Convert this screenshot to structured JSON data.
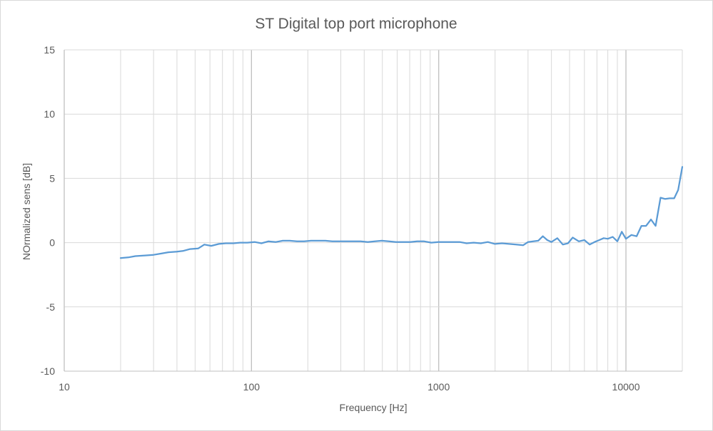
{
  "chart_data": {
    "type": "line",
    "title": "ST Digital top port microphone",
    "xlabel": "Frequency [Hz]",
    "ylabel": "NOrmalized sens [dB]",
    "x_scale": "log",
    "xlim": [
      10,
      20000
    ],
    "ylim": [
      -10,
      15
    ],
    "x_ticks": [
      10,
      100,
      1000,
      10000
    ],
    "x_tick_labels": [
      "10",
      "100",
      "1000",
      "10000"
    ],
    "y_ticks": [
      -10,
      -5,
      0,
      5,
      10,
      15
    ],
    "y_tick_labels": [
      "-10",
      "-5",
      "0",
      "5",
      "10",
      "15"
    ],
    "grid": true,
    "legend": "none",
    "line_color": "#5b9bd5",
    "grid_color": "#d9d9d9",
    "series": [
      {
        "x": [
          20,
          22,
          24,
          27,
          30,
          33,
          36,
          40,
          43,
          47,
          52,
          56,
          61,
          67,
          73,
          80,
          87,
          95,
          104,
          113,
          123,
          135,
          147,
          160,
          175,
          191,
          208,
          227,
          248,
          270,
          295,
          322,
          351,
          383,
          418,
          456,
          497,
          542,
          591,
          645,
          703,
          767,
          837,
          913,
          996,
          1086,
          1185,
          1293,
          1410,
          1538,
          1678,
          1830,
          1996,
          2178,
          2375,
          2591,
          2827,
          3000,
          3200,
          3400,
          3600,
          3800,
          4000,
          4300,
          4600,
          4900,
          5200,
          5600,
          6000,
          6400,
          6800,
          7200,
          7600,
          8000,
          8500,
          9000,
          9500,
          10000,
          10700,
          11400,
          12100,
          12800,
          13600,
          14400,
          15300,
          16200,
          17100,
          18100,
          19000,
          20000
        ],
        "y": [
          -1.2,
          -1.15,
          -1.05,
          -1.0,
          -0.95,
          -0.85,
          -0.75,
          -0.7,
          -0.65,
          -0.5,
          -0.45,
          -0.15,
          -0.25,
          -0.1,
          -0.05,
          -0.05,
          0.0,
          0.0,
          0.05,
          -0.05,
          0.1,
          0.05,
          0.15,
          0.15,
          0.1,
          0.1,
          0.15,
          0.15,
          0.15,
          0.1,
          0.1,
          0.1,
          0.1,
          0.1,
          0.05,
          0.1,
          0.15,
          0.1,
          0.05,
          0.05,
          0.05,
          0.1,
          0.1,
          0.0,
          0.05,
          0.05,
          0.05,
          0.05,
          -0.05,
          0.0,
          -0.05,
          0.05,
          -0.1,
          -0.05,
          -0.1,
          -0.15,
          -0.2,
          0.05,
          0.1,
          0.15,
          0.5,
          0.2,
          0.05,
          0.35,
          -0.15,
          -0.05,
          0.4,
          0.1,
          0.2,
          -0.15,
          0.05,
          0.2,
          0.35,
          0.3,
          0.45,
          0.1,
          0.85,
          0.3,
          0.6,
          0.5,
          1.3,
          1.3,
          1.8,
          1.3,
          3.5,
          3.4,
          3.45,
          3.45,
          4.1,
          5.9
        ]
      }
    ]
  }
}
